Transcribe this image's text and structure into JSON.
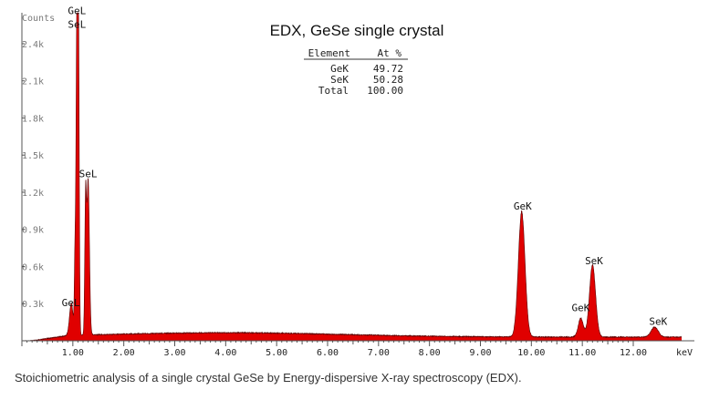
{
  "chart_data": {
    "type": "area",
    "title": "EDX, GeSe single crystal",
    "y_axis_title": "Counts",
    "x_unit": "keV",
    "xlim": [
      0,
      13.2
    ],
    "ylim": [
      0,
      2.65
    ],
    "x_ticks": [
      "1.00",
      "2.00",
      "3.00",
      "4.00",
      "5.00",
      "6.00",
      "7.00",
      "8.00",
      "9.00",
      "10.00",
      "11.00",
      "12.00"
    ],
    "y_ticks": [
      "0.3k",
      "0.6k",
      "0.9k",
      "1.2k",
      "1.5k",
      "1.8k",
      "2.1k",
      "2.4k"
    ],
    "fill_color": "#e00000",
    "line_color": "#5a0000",
    "background": 0.05,
    "peaks": [
      {
        "center": 0.97,
        "height": 0.26,
        "width": 0.035
      },
      {
        "center": 1.04,
        "height": 0.5,
        "width": 0.012
      },
      {
        "center": 1.08,
        "height": 2.52,
        "width": 0.018
      },
      {
        "center": 1.11,
        "height": 2.3,
        "width": 0.015
      },
      {
        "center": 1.25,
        "height": 1.05,
        "width": 0.016
      },
      {
        "center": 1.3,
        "height": 1.25,
        "width": 0.025
      },
      {
        "center": 9.81,
        "height": 1.01,
        "width": 0.065
      },
      {
        "center": 10.97,
        "height": 0.15,
        "width": 0.05
      },
      {
        "center": 11.2,
        "height": 0.58,
        "width": 0.06
      },
      {
        "center": 12.42,
        "height": 0.08,
        "width": 0.07
      }
    ],
    "peak_labels": [
      {
        "text": "GeL",
        "x": 1.08,
        "y": 2.64
      },
      {
        "text": "SeL",
        "x": 1.08,
        "y": 2.53
      },
      {
        "text": "SeL",
        "x": 1.3,
        "y": 1.32
      },
      {
        "text": "GeL",
        "x": 0.96,
        "y": 0.28
      },
      {
        "text": "GeK",
        "x": 9.83,
        "y": 1.06
      },
      {
        "text": "SeK",
        "x": 11.23,
        "y": 0.62
      },
      {
        "text": "GeK",
        "x": 10.97,
        "y": 0.24
      },
      {
        "text": "SeK",
        "x": 12.49,
        "y": 0.13
      }
    ],
    "table": {
      "headers": [
        "Element",
        "At %"
      ],
      "rows": [
        {
          "element": "GeK",
          "value": "49.72"
        },
        {
          "element": "SeK",
          "value": "50.28"
        },
        {
          "element": "Total",
          "value": "100.00"
        }
      ]
    }
  },
  "caption": "Stoichiometric analysis of a single crystal GeSe by Energy-dispersive X-ray spectroscopy (EDX)."
}
